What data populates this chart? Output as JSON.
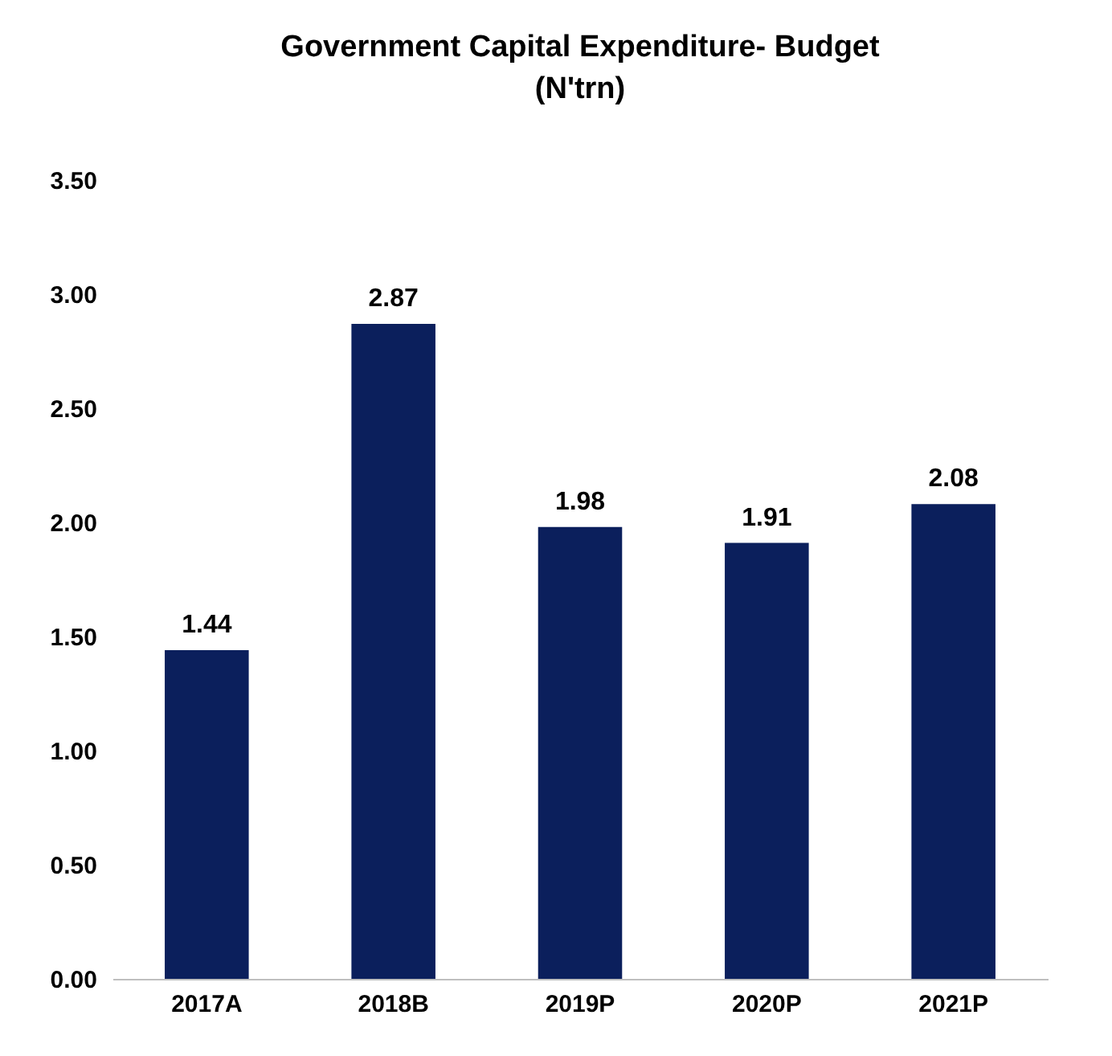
{
  "chart_data": {
    "type": "bar",
    "title": "Government Capital Expenditure- Budget\n(N'trn)",
    "categories": [
      "2017A",
      "2018B",
      "2019P",
      "2020P",
      "2021P"
    ],
    "values": [
      1.44,
      2.87,
      1.98,
      1.91,
      2.08
    ],
    "color": "#0b1f5c",
    "ylim": [
      0,
      3.5
    ],
    "yticks": [
      {
        "value": 0,
        "label": "0.00"
      },
      {
        "value": 0.5,
        "label": "0.50"
      },
      {
        "value": 1,
        "label": "1.00"
      },
      {
        "value": 1.5,
        "label": "1.50"
      },
      {
        "value": 2,
        "label": "2.00"
      },
      {
        "value": 2.5,
        "label": "2.50"
      },
      {
        "value": 3,
        "label": "3.00"
      },
      {
        "value": 3.5,
        "label": "3.50"
      }
    ],
    "grid": false,
    "data_labels": true
  }
}
